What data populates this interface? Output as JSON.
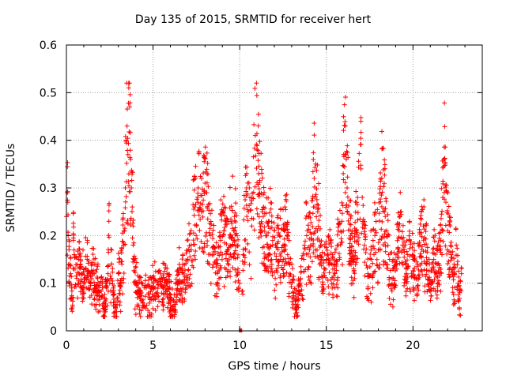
{
  "chart_data": {
    "type": "scatter",
    "title": "Day 135 of 2015, SRMTID for receiver hert",
    "xlabel": "GPS time / hours",
    "ylabel": "SRMTID / TECUs",
    "xlim": [
      0,
      24
    ],
    "ylim": [
      0,
      0.6
    ],
    "xticks": [
      0,
      5,
      10,
      15,
      20
    ],
    "yticks": [
      0,
      0.1,
      0.2,
      0.3,
      0.4,
      0.5,
      0.6
    ],
    "grid": true,
    "marker": "+",
    "color": "#ff0000",
    "n_points_approx": 2200,
    "series": [
      {
        "name": "SRMTID",
        "points": [
          [
            0.0,
            0.24
          ],
          [
            0.05,
            0.29
          ],
          [
            0.08,
            0.27
          ],
          [
            0.1,
            0.2
          ],
          [
            0.15,
            0.17
          ],
          [
            0.2,
            0.14
          ],
          [
            0.25,
            0.12
          ],
          [
            0.3,
            0.09
          ],
          [
            0.35,
            0.05
          ],
          [
            0.4,
            0.19
          ],
          [
            0.45,
            0.16
          ],
          [
            0.5,
            0.13
          ],
          [
            0.6,
            0.11
          ],
          [
            0.7,
            0.15
          ],
          [
            0.8,
            0.14
          ],
          [
            0.9,
            0.12
          ],
          [
            1.0,
            0.1
          ],
          [
            1.1,
            0.13
          ],
          [
            1.2,
            0.15
          ],
          [
            1.3,
            0.12
          ],
          [
            1.4,
            0.1
          ],
          [
            1.5,
            0.14
          ],
          [
            1.6,
            0.12
          ],
          [
            1.7,
            0.09
          ],
          [
            1.8,
            0.11
          ],
          [
            1.9,
            0.08
          ],
          [
            2.0,
            0.1
          ],
          [
            2.1,
            0.07
          ],
          [
            2.2,
            0.05
          ],
          [
            2.3,
            0.09
          ],
          [
            2.4,
            0.12
          ],
          [
            2.45,
            0.23
          ],
          [
            2.5,
            0.1
          ],
          [
            2.6,
            0.14
          ],
          [
            2.7,
            0.09
          ],
          [
            2.8,
            0.06
          ],
          [
            2.9,
            0.04
          ],
          [
            3.0,
            0.12
          ],
          [
            3.1,
            0.1
          ],
          [
            3.2,
            0.14
          ],
          [
            3.3,
            0.18
          ],
          [
            3.35,
            0.21
          ],
          [
            3.4,
            0.3
          ],
          [
            3.45,
            0.4
          ],
          [
            3.5,
            0.43
          ],
          [
            3.55,
            0.37
          ],
          [
            3.6,
            0.51
          ],
          [
            3.65,
            0.47
          ],
          [
            3.7,
            0.36
          ],
          [
            3.75,
            0.3
          ],
          [
            3.8,
            0.26
          ],
          [
            3.85,
            0.22
          ],
          [
            3.9,
            0.15
          ],
          [
            4.0,
            0.1
          ],
          [
            4.2,
            0.08
          ],
          [
            4.4,
            0.06
          ],
          [
            4.6,
            0.09
          ],
          [
            4.8,
            0.07
          ],
          [
            5.0,
            0.1
          ],
          [
            5.2,
            0.08
          ],
          [
            5.4,
            0.11
          ],
          [
            5.6,
            0.09
          ],
          [
            5.8,
            0.12
          ],
          [
            6.0,
            0.07
          ],
          [
            6.2,
            0.05
          ],
          [
            6.4,
            0.1
          ],
          [
            6.6,
            0.13
          ],
          [
            6.8,
            0.1
          ],
          [
            7.0,
            0.15
          ],
          [
            7.2,
            0.18
          ],
          [
            7.4,
            0.26
          ],
          [
            7.6,
            0.3
          ],
          [
            7.8,
            0.25
          ],
          [
            8.0,
            0.31
          ],
          [
            8.1,
            0.29
          ],
          [
            8.3,
            0.2
          ],
          [
            8.5,
            0.16
          ],
          [
            8.7,
            0.12
          ],
          [
            8.9,
            0.19
          ],
          [
            9.1,
            0.21
          ],
          [
            9.3,
            0.17
          ],
          [
            9.5,
            0.23
          ],
          [
            9.7,
            0.24
          ],
          [
            9.9,
            0.13
          ],
          [
            10.0,
            0.1
          ],
          [
            10.05,
            0.0
          ],
          [
            10.2,
            0.16
          ],
          [
            10.4,
            0.3
          ],
          [
            10.5,
            0.25
          ],
          [
            10.7,
            0.22
          ],
          [
            10.9,
            0.41
          ],
          [
            11.0,
            0.38
          ],
          [
            11.1,
            0.33
          ],
          [
            11.3,
            0.25
          ],
          [
            11.5,
            0.2
          ],
          [
            11.7,
            0.23
          ],
          [
            11.9,
            0.18
          ],
          [
            12.1,
            0.15
          ],
          [
            12.3,
            0.2
          ],
          [
            12.5,
            0.18
          ],
          [
            12.7,
            0.22
          ],
          [
            12.9,
            0.12
          ],
          [
            13.1,
            0.08
          ],
          [
            13.3,
            0.05
          ],
          [
            13.5,
            0.1
          ],
          [
            13.7,
            0.15
          ],
          [
            13.9,
            0.21
          ],
          [
            14.1,
            0.18
          ],
          [
            14.3,
            0.32
          ],
          [
            14.5,
            0.25
          ],
          [
            14.7,
            0.15
          ],
          [
            14.9,
            0.13
          ],
          [
            15.1,
            0.16
          ],
          [
            15.3,
            0.14
          ],
          [
            15.5,
            0.12
          ],
          [
            15.7,
            0.18
          ],
          [
            15.9,
            0.23
          ],
          [
            16.0,
            0.37
          ],
          [
            16.1,
            0.43
          ],
          [
            16.2,
            0.3
          ],
          [
            16.4,
            0.2
          ],
          [
            16.6,
            0.15
          ],
          [
            16.8,
            0.28
          ],
          [
            17.0,
            0.34
          ],
          [
            17.2,
            0.18
          ],
          [
            17.4,
            0.12
          ],
          [
            17.6,
            0.15
          ],
          [
            17.8,
            0.2
          ],
          [
            18.0,
            0.17
          ],
          [
            18.2,
            0.32
          ],
          [
            18.4,
            0.24
          ],
          [
            18.6,
            0.16
          ],
          [
            18.8,
            0.11
          ],
          [
            19.0,
            0.14
          ],
          [
            19.2,
            0.21
          ],
          [
            19.4,
            0.18
          ],
          [
            19.6,
            0.13
          ],
          [
            19.8,
            0.19
          ],
          [
            20.0,
            0.15
          ],
          [
            20.2,
            0.11
          ],
          [
            20.4,
            0.18
          ],
          [
            20.6,
            0.22
          ],
          [
            20.8,
            0.14
          ],
          [
            21.0,
            0.1
          ],
          [
            21.2,
            0.15
          ],
          [
            21.4,
            0.12
          ],
          [
            21.6,
            0.19
          ],
          [
            21.8,
            0.36
          ],
          [
            21.9,
            0.27
          ],
          [
            22.0,
            0.21
          ],
          [
            22.2,
            0.16
          ],
          [
            22.4,
            0.12
          ],
          [
            22.5,
            0.18
          ],
          [
            22.6,
            0.1
          ],
          [
            22.7,
            0.08
          ],
          [
            22.8,
            0.12
          ]
        ]
      }
    ]
  }
}
